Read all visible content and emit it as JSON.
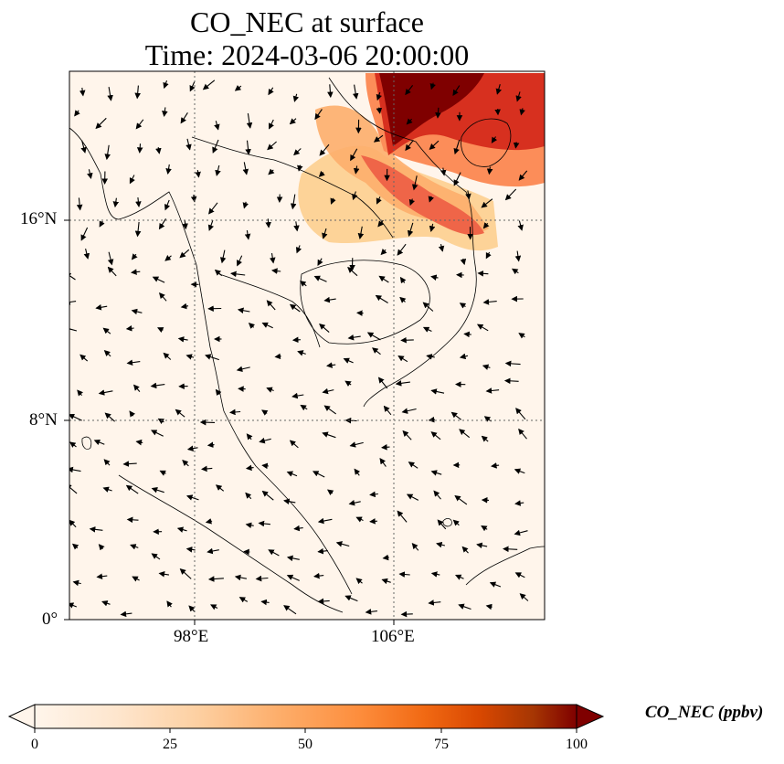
{
  "title_line1": "CO_NEC at surface",
  "title_line2": "Time: 2024-03-06 20:00:00",
  "latitude_ticks": [
    "16°N",
    "8°N",
    "0°"
  ],
  "longitude_ticks": [
    "98°E",
    "106°E"
  ],
  "colorbar": {
    "label": "CO_NEC (ppbv)",
    "ticks": [
      "0",
      "25",
      "50",
      "75",
      "100"
    ],
    "colormap": [
      "#fff5eb",
      "#fee6ce",
      "#fdd0a2",
      "#fdae6b",
      "#fd8d3c",
      "#f16913",
      "#d94801",
      "#a63603",
      "#7f2704"
    ],
    "extend": "both"
  },
  "plume_colors": {
    "darkest": "#7f0000",
    "dark": "#b30000",
    "mid": "#e34a33",
    "light": "#fc8d59",
    "pale": "#fdcc8a",
    "background": "#fff5eb"
  }
}
